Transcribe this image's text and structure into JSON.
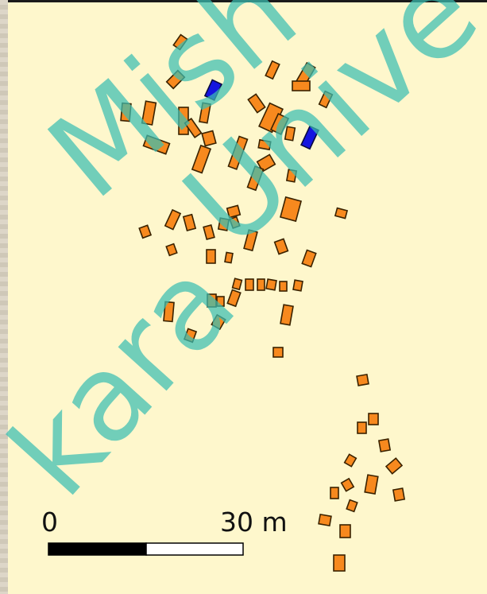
{
  "map": {
    "background_color": "#fef7cc",
    "building_fill": "#f7891e",
    "building_highlight_fill": "#1515e0",
    "building_stroke": "#3a2200"
  },
  "scale_bar": {
    "start_label": "0",
    "end_label": "30 m"
  },
  "watermark": {
    "line1": "Mish",
    "line2": "Unive",
    "line3": "kara",
    "color": "#3cbfb3"
  }
}
